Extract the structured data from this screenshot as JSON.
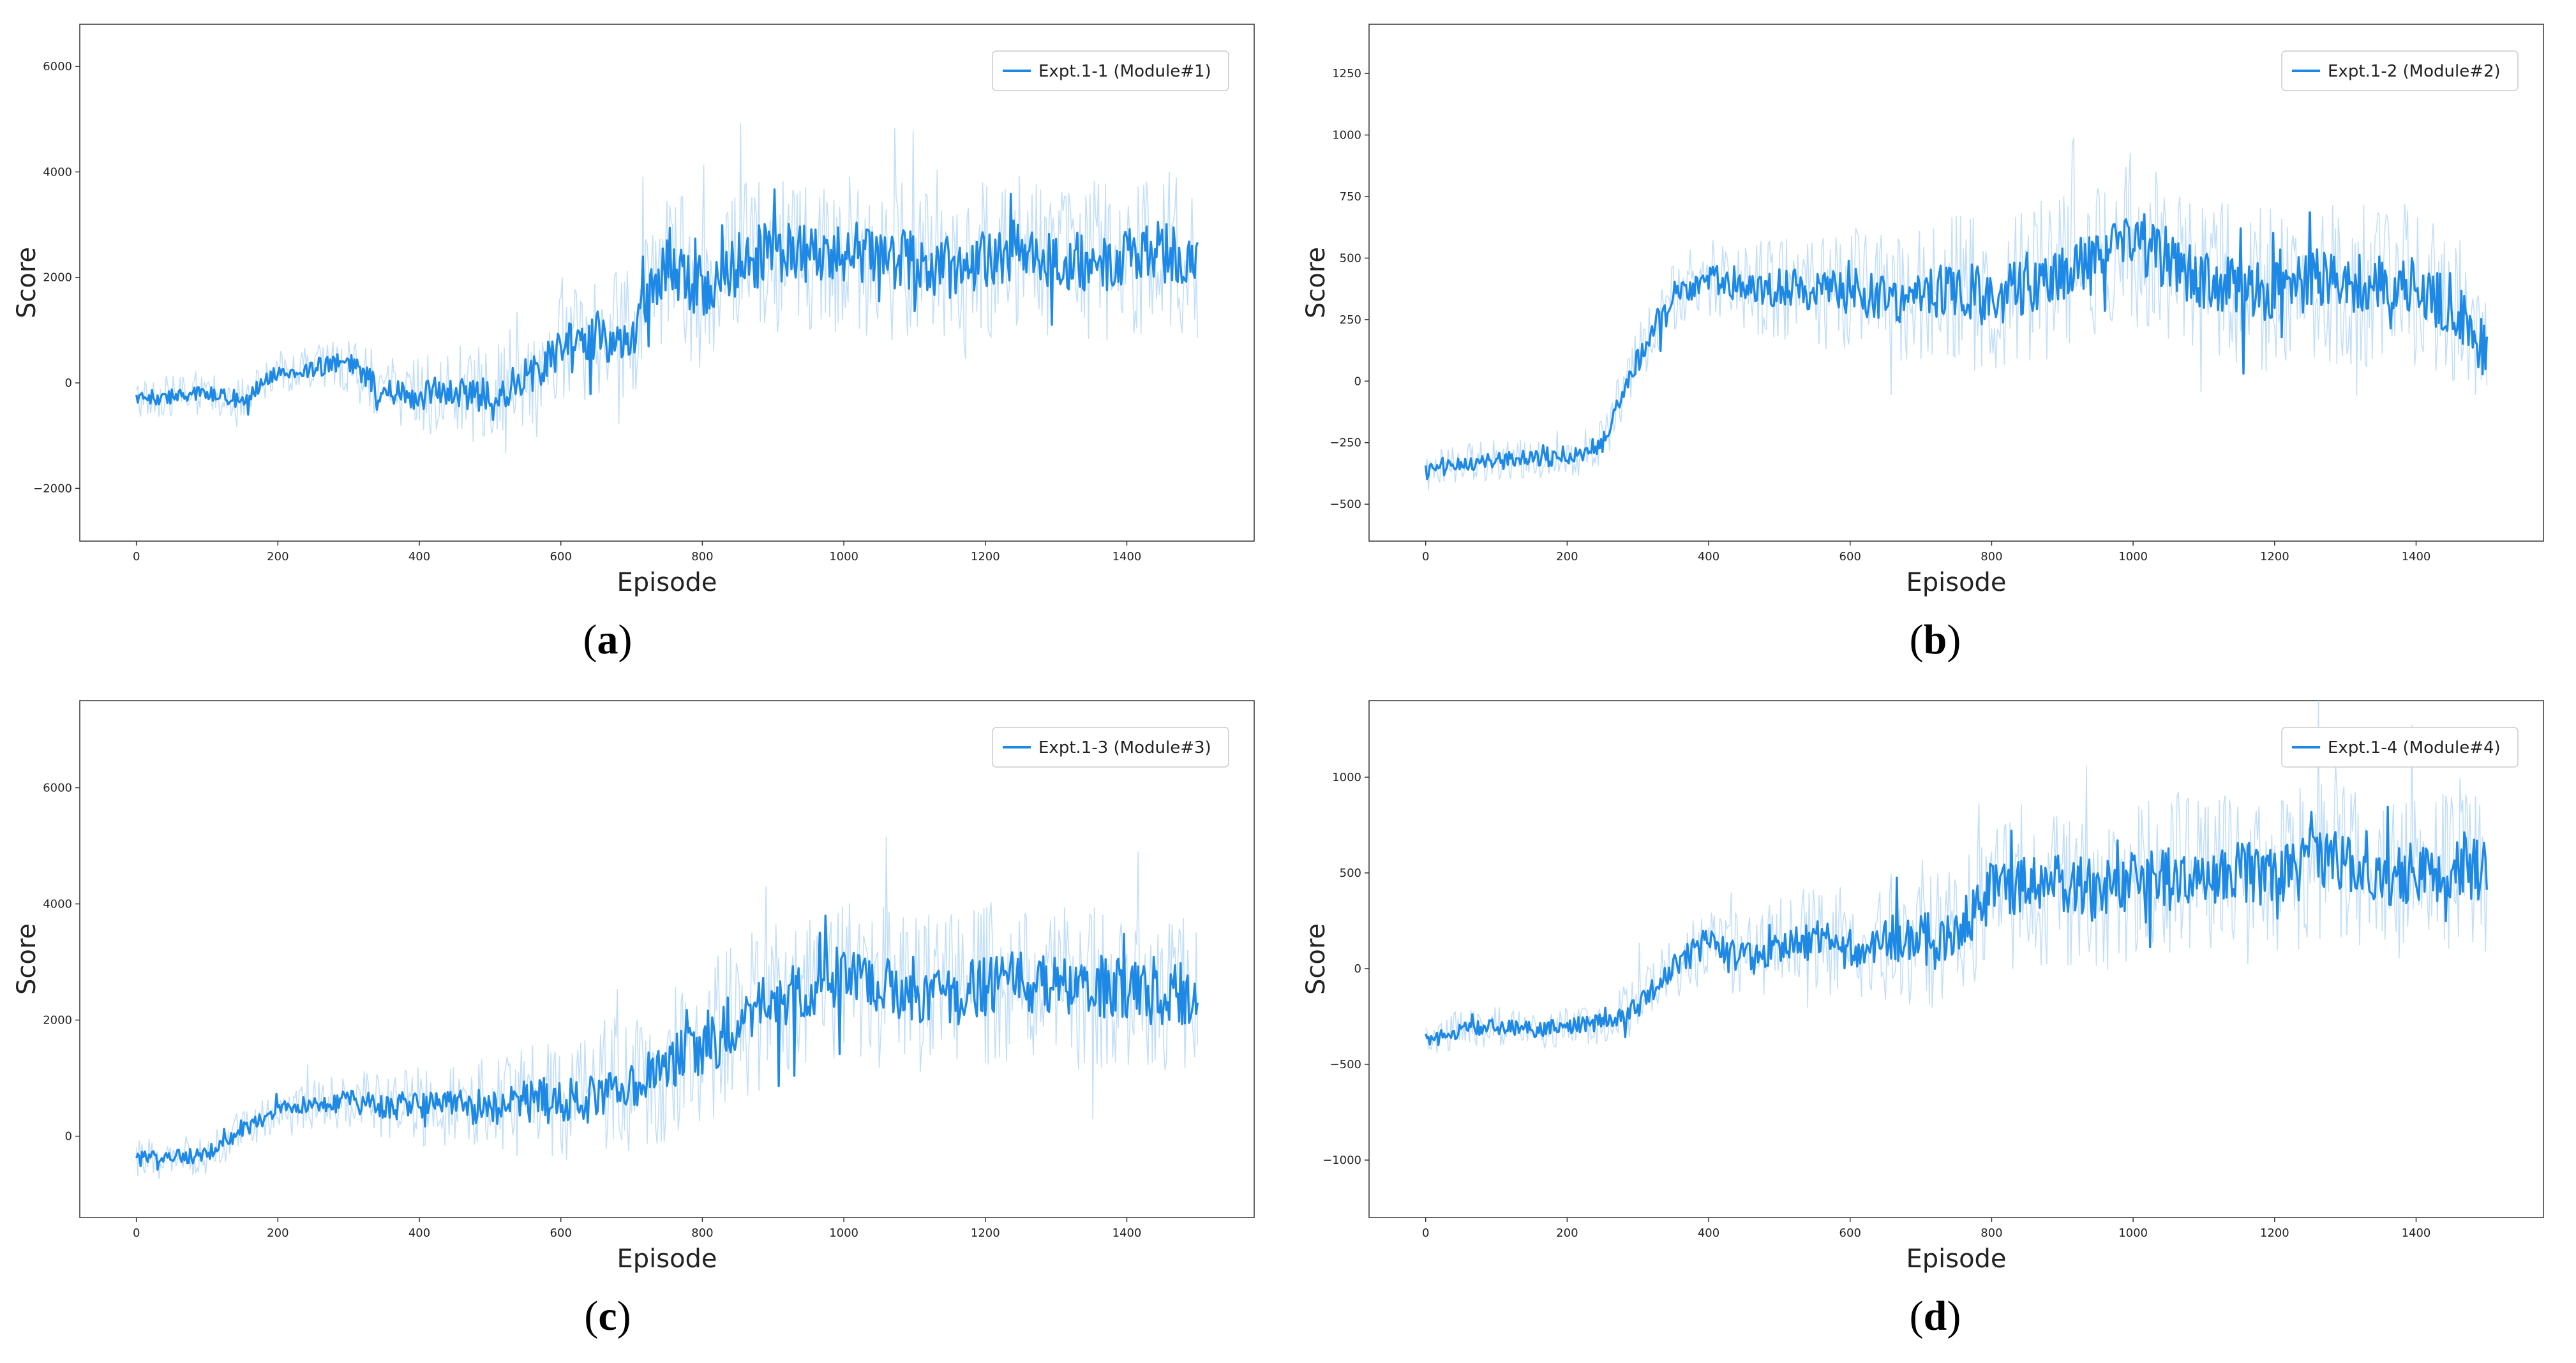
{
  "colors": {
    "line": "#1e88e5",
    "raw": "#bcdcf7",
    "axis": "#333333"
  },
  "panels": [
    {
      "caption_letter": "a",
      "caption_open": "(",
      "caption_close": ")"
    },
    {
      "caption_letter": "b",
      "caption_open": "(",
      "caption_close": ")"
    },
    {
      "caption_letter": "c",
      "caption_open": "(",
      "caption_close": ")"
    },
    {
      "caption_letter": "d",
      "caption_open": "(",
      "caption_close": ")"
    }
  ],
  "chart_data": [
    {
      "type": "line",
      "xlabel": "Episode",
      "ylabel": "Score",
      "legend": "Expt.1-1 (Module#1)",
      "legend_position": "top-right",
      "xlim": [
        -80,
        1580
      ],
      "ylim": [
        -3000,
        6800
      ],
      "xticks": [
        0,
        200,
        400,
        600,
        800,
        1000,
        1200,
        1400
      ],
      "yticks": [
        -2000,
        0,
        2000,
        4000,
        6000
      ],
      "ytick_labels": [
        "−2000",
        "0",
        "2000",
        "4000",
        "6000"
      ],
      "x": [
        0,
        50,
        100,
        150,
        200,
        250,
        300,
        350,
        400,
        450,
        500,
        550,
        600,
        650,
        700,
        750,
        800,
        850,
        900,
        950,
        1000,
        1050,
        1100,
        1150,
        1200,
        1250,
        1300,
        1350,
        1400,
        1450,
        1500
      ],
      "y": [
        -300,
        -250,
        -200,
        -300,
        200,
        300,
        400,
        -200,
        -250,
        -100,
        -300,
        100,
        700,
        900,
        800,
        2300,
        1700,
        2300,
        2500,
        2400,
        2500,
        2400,
        2300,
        2200,
        2300,
        2600,
        2200,
        2300,
        2400,
        2500,
        2200
      ]
    },
    {
      "type": "line",
      "xlabel": "Episode",
      "ylabel": "Score",
      "legend": "Expt.1-2 (Module#2)",
      "legend_position": "top-right",
      "xlim": [
        -80,
        1580
      ],
      "ylim": [
        -650,
        1450
      ],
      "xticks": [
        0,
        200,
        400,
        600,
        800,
        1000,
        1200,
        1400
      ],
      "yticks": [
        -500,
        -250,
        0,
        250,
        500,
        750,
        1000,
        1250
      ],
      "ytick_labels": [
        "−500",
        "−250",
        "0",
        "250",
        "500",
        "750",
        "1000",
        "1250"
      ],
      "x": [
        0,
        50,
        100,
        150,
        200,
        250,
        300,
        350,
        400,
        450,
        500,
        550,
        600,
        650,
        700,
        750,
        800,
        850,
        900,
        950,
        1000,
        1050,
        1100,
        1150,
        1200,
        1250,
        1300,
        1350,
        1400,
        1450,
        1500
      ],
      "y": [
        -370,
        -340,
        -320,
        -310,
        -320,
        -250,
        100,
        350,
        420,
        380,
        380,
        350,
        370,
        330,
        360,
        380,
        330,
        400,
        440,
        480,
        550,
        500,
        420,
        380,
        370,
        420,
        380,
        400,
        380,
        320,
        100
      ]
    },
    {
      "type": "line",
      "xlabel": "Episode",
      "ylabel": "Score",
      "legend": "Expt.1-3 (Module#3)",
      "legend_position": "top-right",
      "xlim": [
        -80,
        1580
      ],
      "ylim": [
        -1400,
        7500
      ],
      "xticks": [
        0,
        200,
        400,
        600,
        800,
        1000,
        1200,
        1400
      ],
      "yticks": [
        0,
        2000,
        4000,
        6000
      ],
      "ytick_labels": [
        "0",
        "2000",
        "4000",
        "6000"
      ],
      "x": [
        0,
        50,
        100,
        150,
        200,
        250,
        300,
        350,
        400,
        450,
        500,
        550,
        600,
        650,
        700,
        750,
        800,
        850,
        900,
        950,
        1000,
        1050,
        1100,
        1150,
        1200,
        1250,
        1300,
        1350,
        1400,
        1450,
        1500
      ],
      "y": [
        -400,
        -380,
        -300,
        100,
        450,
        550,
        600,
        520,
        520,
        520,
        520,
        600,
        600,
        650,
        900,
        1200,
        1500,
        2000,
        2300,
        2600,
        2800,
        2600,
        2500,
        2400,
        2600,
        2700,
        2500,
        2600,
        2500,
        2400,
        2500
      ]
    },
    {
      "type": "line",
      "xlabel": "Episode",
      "ylabel": "Score",
      "legend": "Expt.1-4 (Module#4)",
      "legend_position": "top-right",
      "xlim": [
        -80,
        1580
      ],
      "ylim": [
        -1300,
        1400
      ],
      "xticks": [
        0,
        200,
        400,
        600,
        800,
        1000,
        1200,
        1400
      ],
      "yticks": [
        -1000,
        -500,
        0,
        500,
        1000
      ],
      "ytick_labels": [
        "−1000",
        "−500",
        "0",
        "500",
        "1000"
      ],
      "x": [
        0,
        50,
        100,
        150,
        200,
        250,
        300,
        350,
        400,
        450,
        500,
        550,
        600,
        650,
        700,
        750,
        800,
        850,
        900,
        950,
        1000,
        1050,
        1100,
        1150,
        1200,
        1250,
        1300,
        1350,
        1400,
        1450,
        1500
      ],
      "y": [
        -380,
        -320,
        -300,
        -320,
        -300,
        -280,
        -200,
        0,
        150,
        50,
        100,
        150,
        100,
        150,
        150,
        200,
        400,
        420,
        450,
        400,
        450,
        500,
        500,
        520,
        450,
        550,
        580,
        450,
        500,
        520,
        520
      ]
    }
  ]
}
